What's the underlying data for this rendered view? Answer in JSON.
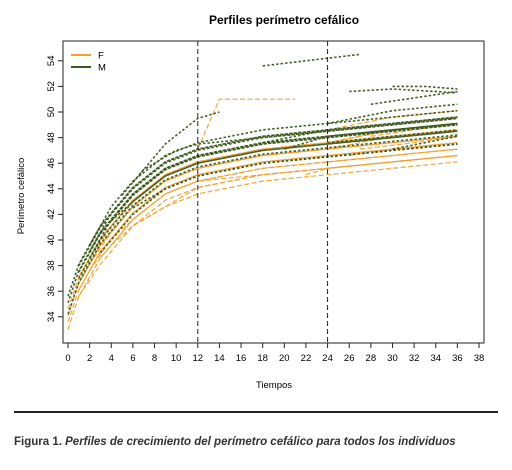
{
  "chart_data": {
    "type": "line",
    "title": "Perfiles perímetro cefálico",
    "xlabel": "Tiempos",
    "ylabel": "Perímetro cefálico",
    "xlim": [
      0,
      38
    ],
    "ylim": [
      32.5,
      55
    ],
    "xticks": [
      "0",
      "2",
      "4",
      "6",
      "8",
      "10",
      "12",
      "14",
      "16",
      "18",
      "20",
      "22",
      "24",
      "26",
      "28",
      "30",
      "32",
      "34",
      "36",
      "38"
    ],
    "yticks": [
      "34",
      "36",
      "38",
      "40",
      "42",
      "44",
      "46",
      "48",
      "50",
      "52",
      "54"
    ],
    "reference_lines_x": [
      12,
      24
    ],
    "grid": false,
    "legend_position": "top-left",
    "line_style": "dashed",
    "legend": [
      {
        "label": "F",
        "color": "#f0a030"
      },
      {
        "label": "M",
        "color": "#3d5a1e"
      }
    ],
    "series": [
      {
        "group": "F",
        "x": [
          0,
          1,
          3,
          6,
          9,
          12,
          18,
          24,
          30,
          36
        ],
        "y": [
          33.0,
          35.6,
          38.6,
          41.6,
          43.6,
          44.6,
          45.6,
          46.1,
          46.6,
          47.1
        ]
      },
      {
        "group": "F",
        "x": [
          0,
          1,
          3,
          6,
          9,
          12,
          18,
          24,
          30,
          36
        ],
        "y": [
          33.6,
          36.1,
          39.1,
          42.1,
          44.1,
          45.1,
          46.1,
          46.6,
          47.1,
          47.6
        ]
      },
      {
        "group": "F",
        "x": [
          0,
          1,
          3,
          6,
          9,
          12,
          18,
          24,
          30,
          36
        ],
        "y": [
          34.1,
          36.6,
          39.6,
          42.6,
          44.6,
          45.6,
          46.6,
          47.1,
          47.6,
          48.1
        ]
      },
      {
        "group": "F",
        "x": [
          0,
          1,
          3,
          6,
          9,
          12,
          18,
          24,
          30,
          36
        ],
        "y": [
          34.6,
          37.1,
          40.1,
          43.1,
          45.1,
          46.1,
          47.1,
          47.6,
          48.1,
          48.6
        ]
      },
      {
        "group": "F",
        "x": [
          1,
          3,
          6,
          9,
          12,
          18,
          24,
          30,
          36
        ],
        "y": [
          35.6,
          38.1,
          41.1,
          43.1,
          44.1,
          45.1,
          45.6,
          46.1,
          46.6
        ]
      },
      {
        "group": "F",
        "x": [
          1,
          3,
          6,
          9,
          12,
          18,
          24,
          30,
          36
        ],
        "y": [
          36.6,
          39.6,
          42.6,
          44.6,
          45.6,
          46.6,
          47.1,
          48.1,
          48.6
        ]
      },
      {
        "group": "F",
        "x": [
          1,
          3,
          6,
          9,
          12,
          18,
          24,
          30,
          36
        ],
        "y": [
          37.1,
          40.1,
          43.1,
          45.1,
          46.1,
          47.1,
          47.6,
          48.6,
          49.1
        ]
      },
      {
        "group": "F",
        "x": [
          1,
          3,
          6,
          9,
          12,
          18,
          24,
          30,
          36
        ],
        "y": [
          36.1,
          39.1,
          42.1,
          44.1,
          45.1,
          46.1,
          46.6,
          47.1,
          47.6
        ]
      },
      {
        "group": "F",
        "x": [
          2,
          4,
          6,
          9,
          12,
          18,
          24,
          30,
          36
        ],
        "y": [
          37.6,
          40.1,
          41.6,
          43.6,
          44.6,
          45.6,
          46.1,
          46.6,
          47.1
        ]
      },
      {
        "group": "F",
        "x": [
          2,
          4,
          6,
          9,
          12,
          18,
          24,
          30,
          36
        ],
        "y": [
          38.6,
          41.1,
          43.1,
          45.1,
          46.1,
          47.1,
          47.6,
          48.1,
          48.6
        ]
      },
      {
        "group": "F",
        "x": [
          2,
          4,
          6,
          9,
          12,
          18,
          24,
          30,
          36
        ],
        "y": [
          38.1,
          40.6,
          42.6,
          44.6,
          45.6,
          46.6,
          47.1,
          47.6,
          48.1
        ]
      },
      {
        "group": "F",
        "x": [
          3,
          6,
          9,
          12,
          18,
          24,
          30,
          36
        ],
        "y": [
          38.6,
          41.6,
          43.6,
          44.6,
          45.1,
          45.6,
          46.1,
          46.6
        ]
      },
      {
        "group": "F",
        "x": [
          4,
          6,
          8,
          12,
          18,
          24,
          30,
          36
        ],
        "y": [
          39.6,
          41.1,
          42.1,
          44.1,
          45.1,
          45.6,
          46.1,
          46.6
        ]
      },
      {
        "group": "F",
        "x": [
          6,
          9,
          12,
          18,
          24,
          30,
          36
        ],
        "y": [
          41.1,
          42.6,
          43.6,
          44.6,
          45.1,
          45.6,
          46.1
        ]
      },
      {
        "group": "F",
        "x": [
          12,
          14,
          21
        ],
        "y": [
          47.1,
          51.0,
          51.0
        ]
      },
      {
        "group": "F",
        "x": [
          22,
          24,
          30,
          36
        ],
        "y": [
          45.1,
          45.6,
          46.1,
          46.6
        ]
      },
      {
        "group": "F",
        "x": [
          24,
          30,
          36
        ],
        "y": [
          46.1,
          46.6,
          47.1
        ]
      },
      {
        "group": "F",
        "x": [
          24,
          30,
          36
        ],
        "y": [
          47.6,
          48.6,
          49.1
        ]
      },
      {
        "group": "F",
        "x": [
          24,
          30,
          36
        ],
        "y": [
          48.6,
          49.6,
          50.1
        ]
      },
      {
        "group": "F",
        "x": [
          26,
          30,
          36
        ],
        "y": [
          46.6,
          47.1,
          47.6
        ]
      },
      {
        "group": "F",
        "x": [
          27,
          32,
          36
        ],
        "y": [
          47.1,
          47.6,
          48.1
        ]
      },
      {
        "group": "F",
        "x": [
          28,
          32,
          36
        ],
        "y": [
          48.1,
          48.6,
          49.1
        ]
      },
      {
        "group": "M",
        "x": [
          0,
          1,
          3,
          6,
          9,
          12,
          18,
          24,
          30,
          36
        ],
        "y": [
          34.2,
          36.7,
          39.7,
          42.7,
          44.7,
          45.7,
          46.7,
          47.2,
          47.7,
          48.2
        ]
      },
      {
        "group": "M",
        "x": [
          0,
          1,
          3,
          6,
          9,
          12,
          18,
          24,
          30,
          36
        ],
        "y": [
          35.1,
          37.6,
          40.6,
          43.6,
          45.6,
          46.6,
          47.6,
          48.1,
          48.6,
          49.1
        ]
      },
      {
        "group": "M",
        "x": [
          0,
          1,
          3,
          6,
          9,
          12,
          18,
          24,
          30,
          36
        ],
        "y": [
          35.6,
          38.1,
          41.1,
          44.1,
          46.1,
          47.1,
          48.1,
          48.6,
          49.1,
          49.6
        ]
      },
      {
        "group": "M",
        "x": [
          1,
          3,
          6,
          9,
          12,
          18,
          24,
          30,
          36
        ],
        "y": [
          37.0,
          40.0,
          43.0,
          45.0,
          46.0,
          47.0,
          47.5,
          48.0,
          48.5
        ]
      },
      {
        "group": "M",
        "x": [
          1,
          3,
          6,
          9,
          12,
          18,
          24,
          30,
          36
        ],
        "y": [
          37.5,
          40.5,
          43.5,
          45.5,
          46.5,
          47.5,
          48.0,
          48.5,
          49.0
        ]
      },
      {
        "group": "M",
        "x": [
          1,
          3,
          6,
          9,
          12,
          18,
          24,
          30,
          36
        ],
        "y": [
          38.0,
          41.0,
          44.0,
          46.0,
          47.0,
          48.0,
          48.5,
          49.0,
          49.5
        ]
      },
      {
        "group": "M",
        "x": [
          2,
          4,
          6,
          9,
          12,
          18,
          24,
          30,
          36
        ],
        "y": [
          38.6,
          41.6,
          43.6,
          45.6,
          46.6,
          47.6,
          48.1,
          48.6,
          49.1
        ]
      },
      {
        "group": "M",
        "x": [
          2,
          4,
          6,
          9,
          12,
          18,
          24,
          30,
          36
        ],
        "y": [
          39.6,
          42.6,
          44.6,
          46.6,
          47.6,
          48.6,
          49.1,
          49.6,
          50.1
        ]
      },
      {
        "group": "M",
        "x": [
          2,
          4,
          6,
          9,
          12,
          18,
          24,
          30,
          36
        ],
        "y": [
          39.1,
          42.1,
          44.1,
          46.1,
          47.1,
          48.1,
          48.6,
          49.1,
          49.6
        ]
      },
      {
        "group": "M",
        "x": [
          3,
          6,
          9,
          12,
          18,
          24,
          30,
          36
        ],
        "y": [
          39.0,
          42.0,
          44.0,
          45.0,
          46.0,
          46.5,
          47.0,
          47.5
        ]
      },
      {
        "group": "M",
        "x": [
          3,
          6,
          9,
          12,
          18,
          24,
          30,
          36
        ],
        "y": [
          40.5,
          43.5,
          45.5,
          46.5,
          47.5,
          48.0,
          48.5,
          49.0
        ]
      },
      {
        "group": "M",
        "x": [
          4,
          6,
          9,
          12,
          18,
          24,
          30,
          36
        ],
        "y": [
          41.5,
          43.0,
          45.0,
          46.0,
          47.0,
          47.5,
          48.0,
          48.5
        ]
      },
      {
        "group": "M",
        "x": [
          5,
          7,
          10,
          12,
          18,
          24,
          30,
          36
        ],
        "y": [
          43.5,
          45.5,
          47.0,
          47.5,
          48.0,
          48.5,
          49.0,
          49.5
        ]
      },
      {
        "group": "M",
        "x": [
          6,
          9,
          12,
          18,
          24,
          30,
          36
        ],
        "y": [
          42.5,
          44.0,
          45.0,
          46.0,
          46.5,
          47.0,
          47.5
        ]
      },
      {
        "group": "M",
        "x": [
          6,
          9,
          12,
          14
        ],
        "y": [
          44.5,
          47.5,
          49.5,
          50.0
        ]
      },
      {
        "group": "M",
        "x": [
          18,
          24,
          27
        ],
        "y": [
          53.6,
          54.2,
          54.5
        ]
      },
      {
        "group": "M",
        "x": [
          18,
          24,
          30,
          36
        ],
        "y": [
          47.6,
          48.6,
          49.1,
          49.6
        ]
      },
      {
        "group": "M",
        "x": [
          20,
          24,
          30,
          36
        ],
        "y": [
          47.1,
          48.1,
          48.6,
          49.1
        ]
      },
      {
        "group": "M",
        "x": [
          24,
          30,
          36
        ],
        "y": [
          47.6,
          48.1,
          48.6
        ]
      },
      {
        "group": "M",
        "x": [
          24,
          30,
          36
        ],
        "y": [
          49.1,
          50.1,
          50.6
        ]
      },
      {
        "group": "M",
        "x": [
          26,
          30,
          36
        ],
        "y": [
          51.6,
          51.8,
          51.5
        ]
      },
      {
        "group": "M",
        "x": [
          28,
          32,
          36
        ],
        "y": [
          50.6,
          51.1,
          51.6
        ]
      },
      {
        "group": "M",
        "x": [
          30,
          33,
          36
        ],
        "y": [
          52.0,
          52.0,
          51.8
        ]
      },
      {
        "group": "M",
        "x": [
          30,
          33,
          36
        ],
        "y": [
          47.1,
          47.6,
          48.1
        ]
      }
    ]
  },
  "caption": {
    "label": "Figura 1.",
    "text": "Perfiles de crecimiento del perímetro cefálico para todos los individuos"
  }
}
